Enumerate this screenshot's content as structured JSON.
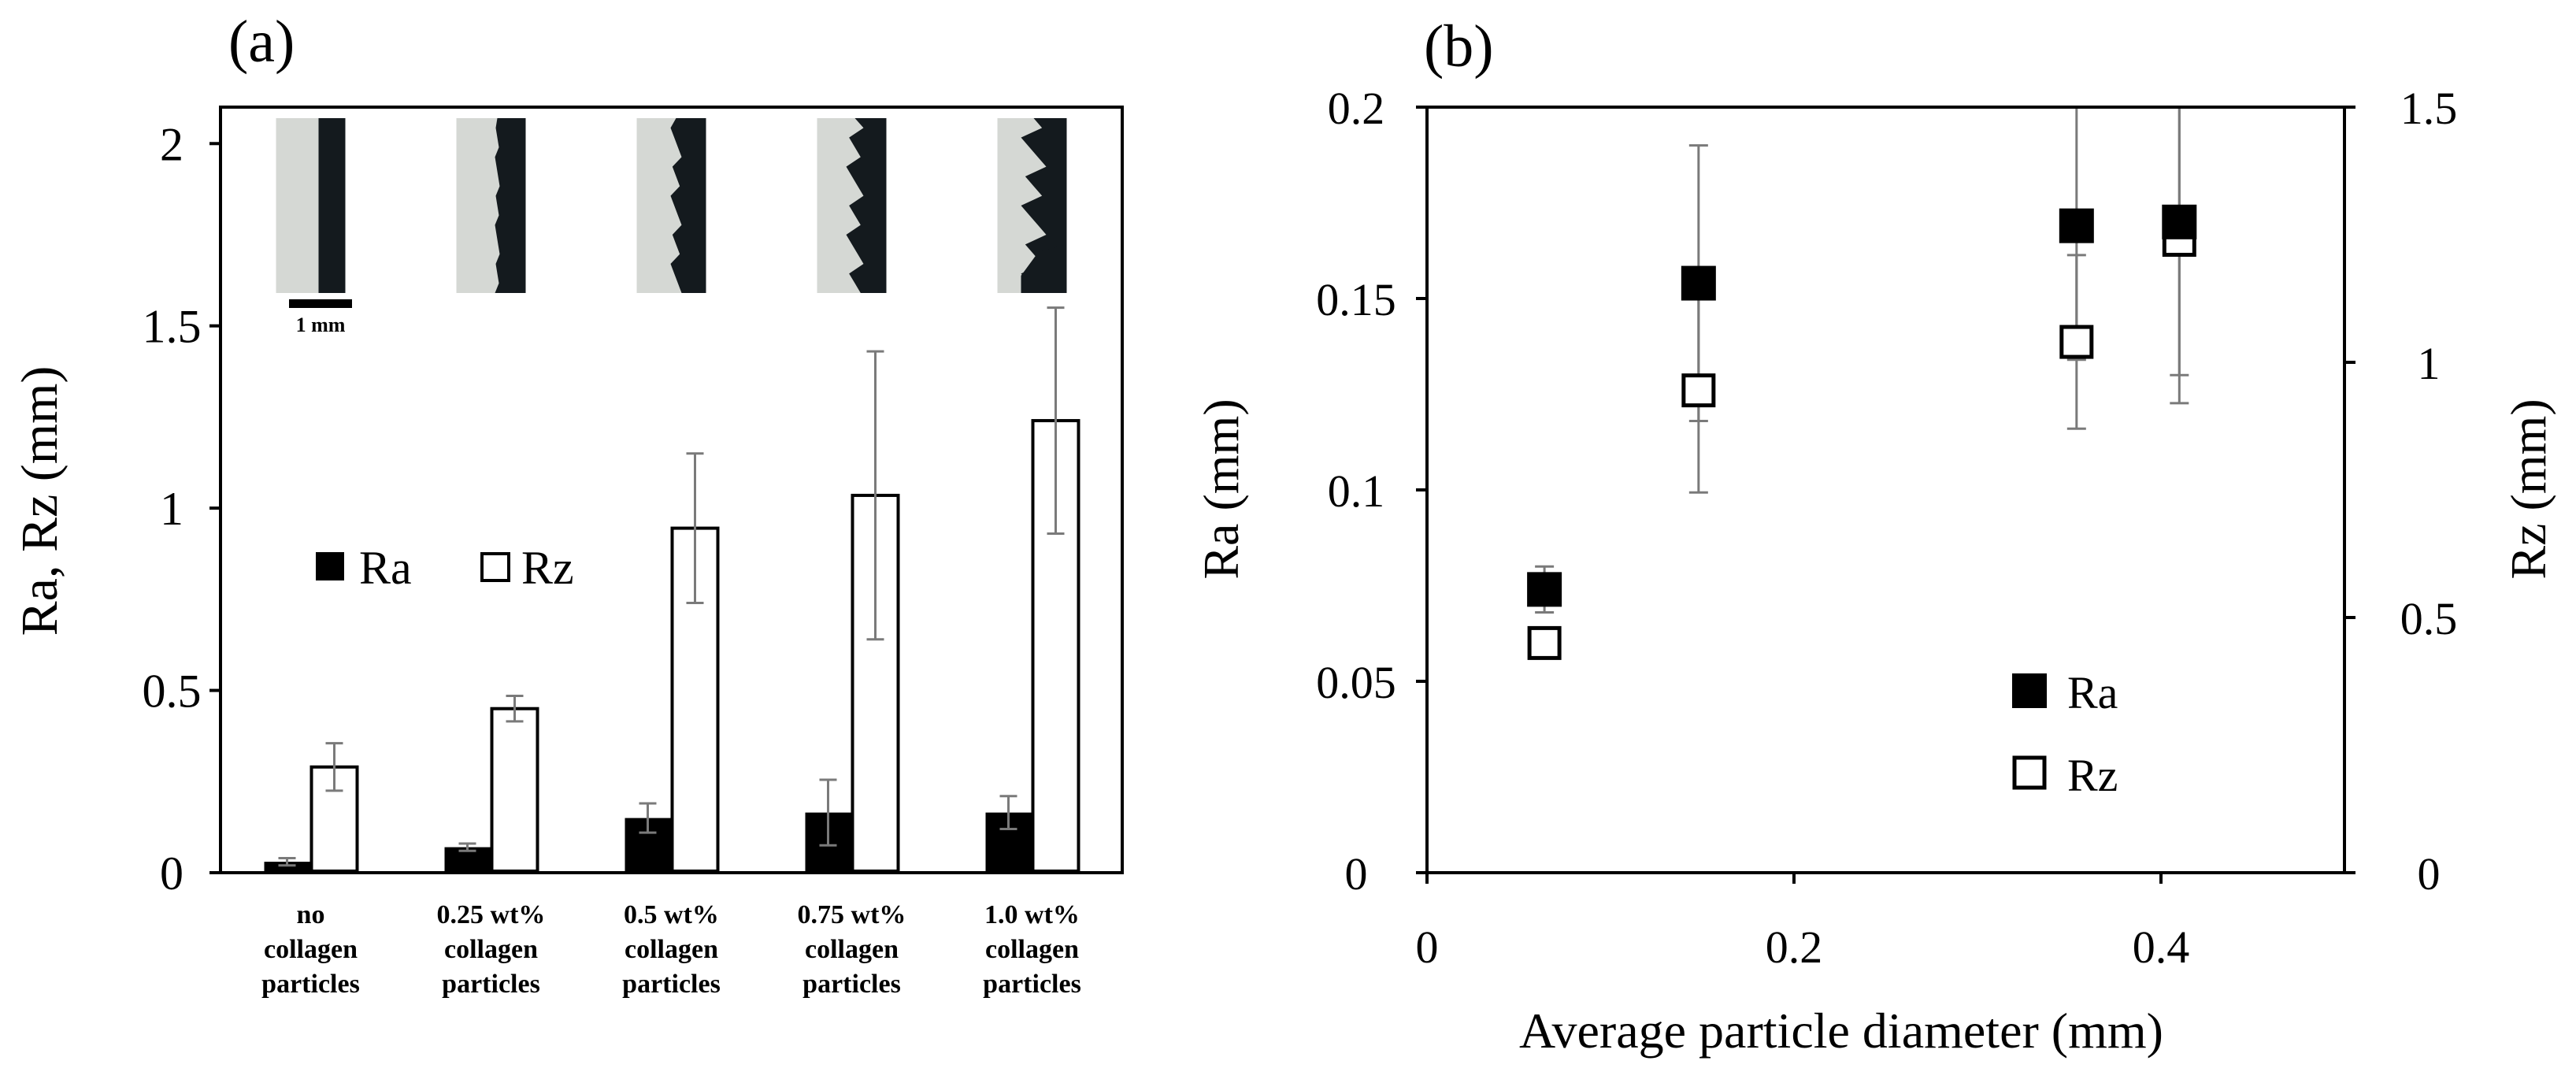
{
  "chart_data": [
    {
      "type": "bar",
      "panel_label": "(a)",
      "ylabel": "Ra, Rz (mm)",
      "ylim": [
        0,
        2.1
      ],
      "yticks": [
        0,
        0.5,
        1,
        1.5,
        2
      ],
      "ytick_labels": [
        "0",
        "0.5",
        "1",
        "1.5",
        "2"
      ],
      "categories": [
        [
          "no",
          "collagen",
          "particles"
        ],
        [
          "0.25 wt%",
          "collagen",
          "particles"
        ],
        [
          "0.5 wt%",
          "collagen",
          "particles"
        ],
        [
          "0.75 wt%",
          "collagen",
          "particles"
        ],
        [
          "1.0 wt%",
          "collagen",
          "particles"
        ]
      ],
      "series": [
        {
          "name": "Ra",
          "fill": "#000000",
          "values": [
            0.03,
            0.07,
            0.15,
            0.165,
            0.165
          ],
          "errors": [
            0.01,
            0.01,
            0.04,
            0.09,
            0.045
          ]
        },
        {
          "name": "Rz",
          "fill": "#ffffff",
          "values": [
            0.29,
            0.45,
            0.945,
            1.035,
            1.24
          ],
          "errors": [
            0.065,
            0.035,
            0.205,
            0.395,
            0.31
          ]
        }
      ],
      "legend": {
        "position": "center-left",
        "items": [
          "Ra",
          "Rz"
        ]
      },
      "inset": {
        "scale_bar_label": "1 mm",
        "photo_count": 5
      }
    },
    {
      "type": "scatter",
      "panel_label": "(b)",
      "xlabel": "Average particle diameter (mm)",
      "ylabel": "Ra (mm)",
      "y2label": "Rz (mm)",
      "xlim": [
        0,
        0.5
      ],
      "ylim": [
        0,
        0.2
      ],
      "y2lim": [
        0,
        1.5
      ],
      "xticks": [
        0,
        0.2,
        0.4
      ],
      "xtick_labels": [
        "0",
        "0.2",
        "0.4"
      ],
      "yticks": [
        0,
        0.05,
        0.1,
        0.15,
        0.2
      ],
      "ytick_labels": [
        "0",
        "0.05",
        "0.1",
        "0.15",
        "0.2"
      ],
      "y2ticks": [
        0,
        0.5,
        1,
        1.5
      ],
      "y2tick_labels": [
        "0",
        "0.5",
        "1",
        "1.5"
      ],
      "series": [
        {
          "name": "Ra",
          "axis": "left",
          "marker": "filled-square",
          "x": [
            0.064,
            0.148,
            0.354,
            0.41
          ],
          "y": [
            0.074,
            0.154,
            0.169,
            0.17
          ],
          "errors": [
            0.006,
            0.036,
            0.035,
            0.04
          ]
        },
        {
          "name": "Rz",
          "axis": "right",
          "marker": "open-square",
          "x": [
            0.064,
            0.148,
            0.354,
            0.41
          ],
          "y": [
            0.45,
            0.945,
            1.04,
            1.24
          ],
          "errors": [
            0.02,
            0.2,
            0.17,
            0.32
          ]
        }
      ],
      "legend": {
        "position": "bottom-right",
        "items": [
          "Ra",
          "Rz"
        ]
      }
    }
  ]
}
